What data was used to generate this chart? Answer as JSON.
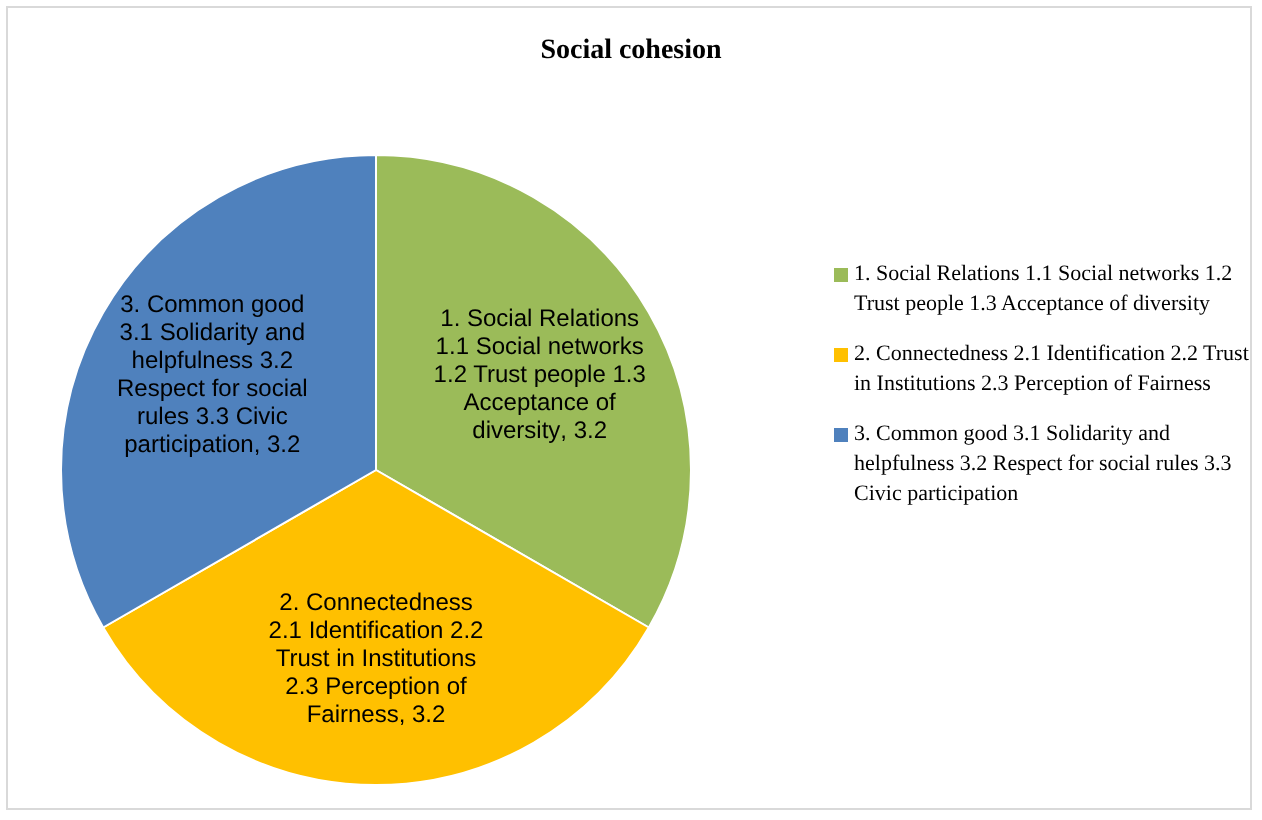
{
  "chart_data": {
    "type": "pie",
    "title": "Social cohesion",
    "categories": [
      "1. Social Relations 1.1 Social networks 1.2 Trust people 1.3 Acceptance of diversity",
      "2. Connectedness 2.1 Identification 2.2 Trust in Institutions 2.3 Perception of Fairness",
      "3. Common good 3.1 Solidarity and helpfulness 3.2 Respect for social rules 3.3 Civic participation"
    ],
    "values": [
      3.2,
      3.2,
      3.2
    ],
    "colors": [
      "#9bbb59",
      "#ffc000",
      "#4f81bd"
    ],
    "value_labels": [
      ", 3.2",
      ", 3.2",
      ", 3.2"
    ],
    "legend": "right"
  }
}
